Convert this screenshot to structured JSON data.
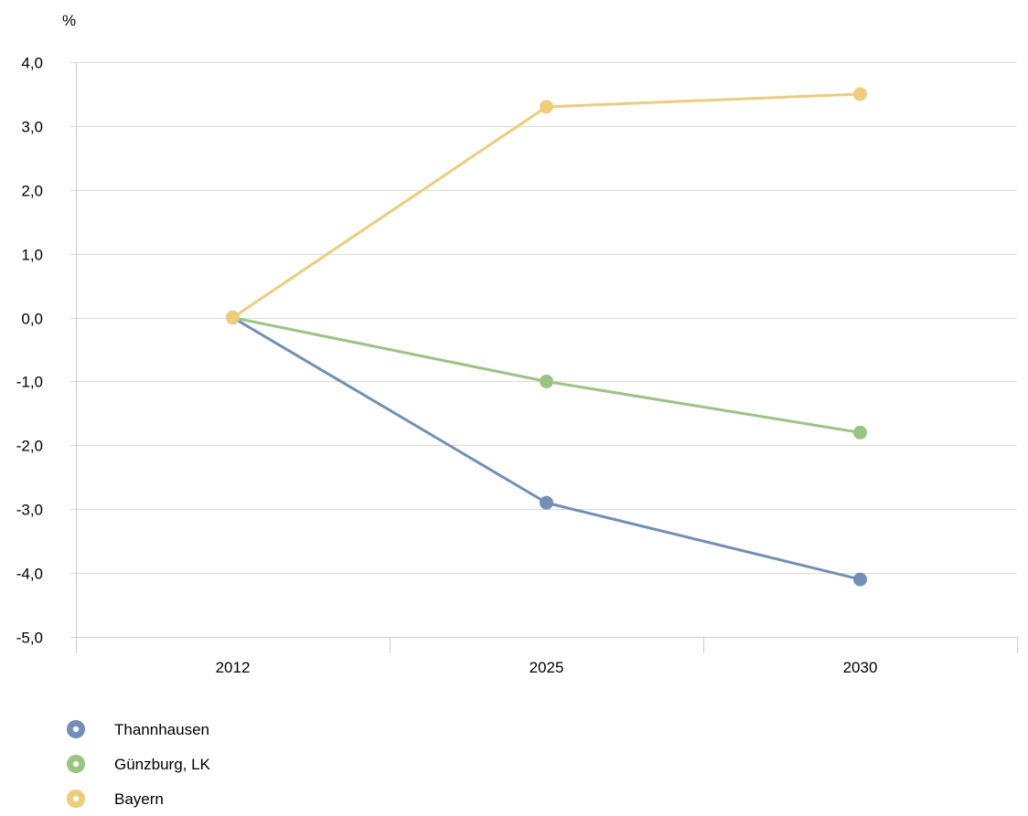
{
  "chart_data": {
    "type": "line",
    "ylabel": "%",
    "xlabel": "",
    "categories": [
      "2012",
      "2025",
      "2030"
    ],
    "ylim": [
      -5.0,
      4.0
    ],
    "yticks": [
      "4,0",
      "3,0",
      "2,0",
      "1,0",
      "0,0",
      "-1,0",
      "-2,0",
      "-3,0",
      "-4,0",
      "-5,0"
    ],
    "grid": true,
    "legend_position": "bottom-left",
    "series": [
      {
        "name": "Thannhausen",
        "color": "#7090b8",
        "values": [
          0.0,
          -2.9,
          -4.1
        ]
      },
      {
        "name": "Günzburg, LK",
        "color": "#98c580",
        "values": [
          0.0,
          -1.0,
          -1.8
        ]
      },
      {
        "name": "Bayern",
        "color": "#efcc78",
        "values": [
          0.0,
          3.3,
          3.5
        ]
      }
    ]
  }
}
